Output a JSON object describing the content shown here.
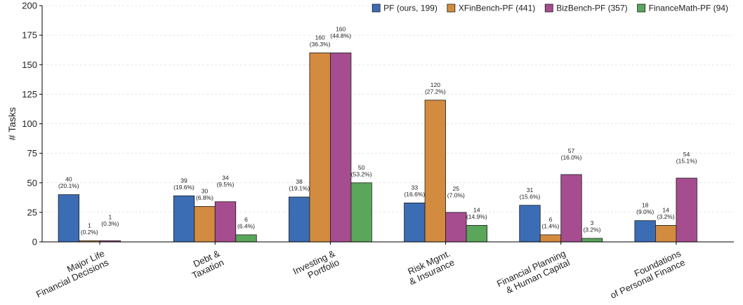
{
  "chart_data": {
    "type": "bar",
    "ylabel": "# Tasks",
    "ylim": [
      0,
      200
    ],
    "yticks": [
      0,
      25,
      50,
      75,
      100,
      125,
      150,
      175,
      200
    ],
    "grid": true,
    "legend_position": "top-right",
    "categories": [
      [
        "Major Life",
        "Financial Decisions"
      ],
      [
        "Debt &",
        "Taxation"
      ],
      [
        "Investing &",
        "Portfolio"
      ],
      [
        "Risk Mgmt.",
        "& Insurance"
      ],
      [
        "Financial Planning",
        "& Human Capital"
      ],
      [
        "Foundations",
        "of Personal Finance"
      ]
    ],
    "series": [
      {
        "name": "PF (ours, 199)",
        "color": "#3b6db5",
        "values": [
          40,
          39,
          38,
          33,
          31,
          18
        ],
        "labels": [
          [
            "40",
            "(20.1%)"
          ],
          [
            "39",
            "(19.6%)"
          ],
          [
            "38",
            "(19.1%)"
          ],
          [
            "33",
            "(16.6%)"
          ],
          [
            "31",
            "(15.6%)"
          ],
          [
            "18",
            "(9.0%)"
          ]
        ]
      },
      {
        "name": "XFinBench-PF (441)",
        "color": "#d38b3f",
        "values": [
          1,
          30,
          160,
          120,
          6,
          14
        ],
        "labels": [
          [
            "1",
            "(0.2%)"
          ],
          [
            "30",
            "(6.8%)"
          ],
          [
            "160",
            "(36.3%)"
          ],
          [
            "120",
            "(27.2%)"
          ],
          [
            "6",
            "(1.4%)"
          ],
          [
            "14",
            "(3.2%)"
          ]
        ]
      },
      {
        "name": "BizBench-PF (357)",
        "color": "#a64d8f",
        "values": [
          1,
          34,
          160,
          25,
          57,
          54
        ],
        "labels": [
          [
            "1",
            "(0.3%)"
          ],
          [
            "34",
            "(9.5%)"
          ],
          [
            "160",
            "(44.8%)"
          ],
          [
            "25",
            "(7.0%)"
          ],
          [
            "57",
            "(16.0%)"
          ],
          [
            "54",
            "(15.1%)"
          ]
        ]
      },
      {
        "name": "FinanceMath-PF (94)",
        "color": "#5aa65a",
        "values": [
          0,
          6,
          50,
          14,
          3,
          0
        ],
        "labels": [
          null,
          [
            "6",
            "(6.4%)"
          ],
          [
            "50",
            "(53.2%)"
          ],
          [
            "14",
            "(14.9%)"
          ],
          [
            "3",
            "(3.2%)"
          ],
          null
        ]
      }
    ]
  }
}
